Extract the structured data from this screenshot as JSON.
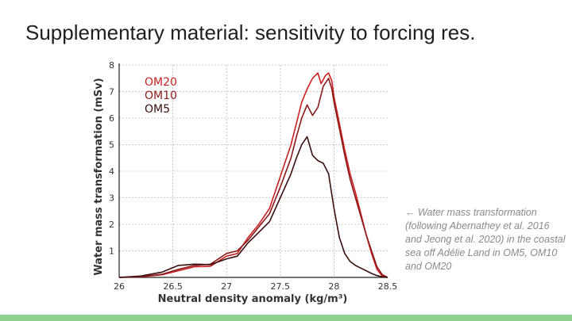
{
  "slide": {
    "title": "Supplementary material: sensitivity to forcing res.",
    "caption": "← Water mass transformation (following Abernathey et al. 2016 and Jeong et al. 2020) in the coastal sea off Adélie Land in OM5, OM10 and OM20",
    "accent_color": "#8fd18f"
  },
  "chart_data": {
    "type": "line",
    "title": "",
    "xlabel": "Neutral density anomaly (kg/m³)",
    "ylabel": "Water mass transformation (mSv)",
    "xlim": [
      26,
      28.5
    ],
    "ylim": [
      0,
      8
    ],
    "xticks": [
      "26",
      "26.5",
      "27",
      "27.5",
      "28",
      "28.5"
    ],
    "xtick_values": [
      26,
      26.5,
      27,
      27.5,
      28,
      28.5
    ],
    "yticks": [
      "1",
      "2",
      "3",
      "4",
      "5",
      "6",
      "7",
      "8"
    ],
    "ytick_values": [
      1,
      2,
      3,
      4,
      5,
      6,
      7,
      8
    ],
    "grid": true,
    "legend_position": "top-left",
    "series": [
      {
        "name": "OM20",
        "color": "#cc1f1f",
        "x": [
          26.0,
          26.2,
          26.4,
          26.55,
          26.7,
          26.85,
          27.0,
          27.1,
          27.2,
          27.3,
          27.4,
          27.5,
          27.6,
          27.65,
          27.7,
          27.75,
          27.8,
          27.85,
          27.88,
          27.92,
          27.95,
          27.98,
          28.0,
          28.05,
          28.1,
          28.15,
          28.2,
          28.25,
          28.3,
          28.35,
          28.4,
          28.45,
          28.5
        ],
        "y": [
          0.0,
          0.02,
          0.1,
          0.25,
          0.4,
          0.42,
          0.8,
          0.9,
          1.5,
          2.0,
          2.6,
          3.8,
          5.0,
          5.8,
          6.6,
          7.1,
          7.5,
          7.7,
          7.3,
          7.6,
          7.7,
          7.4,
          6.8,
          5.8,
          4.8,
          3.9,
          3.2,
          2.4,
          1.6,
          0.9,
          0.3,
          0.05,
          0.0
        ]
      },
      {
        "name": "OM10",
        "color": "#8b1a1a",
        "x": [
          26.0,
          26.2,
          26.4,
          26.55,
          26.7,
          26.85,
          27.0,
          27.1,
          27.2,
          27.3,
          27.4,
          27.5,
          27.6,
          27.65,
          27.7,
          27.75,
          27.8,
          27.85,
          27.9,
          27.95,
          27.98,
          28.0,
          28.05,
          28.1,
          28.15,
          28.2,
          28.25,
          28.3,
          28.35,
          28.4,
          28.45,
          28.5
        ],
        "y": [
          0.0,
          0.03,
          0.12,
          0.3,
          0.45,
          0.5,
          0.9,
          1.0,
          1.4,
          1.9,
          2.4,
          3.4,
          4.5,
          5.3,
          6.0,
          6.5,
          6.1,
          6.4,
          7.2,
          7.5,
          7.1,
          6.6,
          5.6,
          4.6,
          3.7,
          3.0,
          2.3,
          1.6,
          1.0,
          0.4,
          0.1,
          0.0
        ]
      },
      {
        "name": "OM5",
        "color": "#3a0e0e",
        "x": [
          26.0,
          26.2,
          26.4,
          26.55,
          26.7,
          26.85,
          27.0,
          27.1,
          27.2,
          27.3,
          27.4,
          27.5,
          27.6,
          27.65,
          27.7,
          27.75,
          27.8,
          27.85,
          27.9,
          27.95,
          28.0,
          28.05,
          28.1,
          28.15,
          28.2,
          28.25,
          28.3,
          28.35,
          28.4,
          28.45,
          28.5
        ],
        "y": [
          0.0,
          0.05,
          0.2,
          0.45,
          0.5,
          0.48,
          0.7,
          0.8,
          1.3,
          1.7,
          2.1,
          3.0,
          3.9,
          4.5,
          5.0,
          5.3,
          4.6,
          4.4,
          4.3,
          3.9,
          2.6,
          1.5,
          0.9,
          0.6,
          0.45,
          0.35,
          0.25,
          0.15,
          0.07,
          0.02,
          0.0
        ]
      }
    ]
  }
}
